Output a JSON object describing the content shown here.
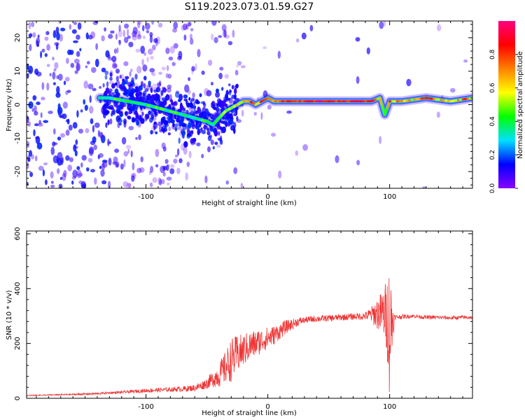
{
  "title": "S119.2023.073.01.59.G27",
  "chart_data": [
    {
      "type": "heatmap",
      "xlabel": "Height of straight line (km)",
      "ylabel": "Frequency (Hz)",
      "xlim": [
        -198,
        168
      ],
      "ylim": [
        -25,
        25
      ],
      "xticks": [
        -100,
        0,
        100
      ],
      "xtick_labels": [
        "-100",
        "0",
        "100"
      ],
      "yticks": [
        -20,
        -10,
        0,
        10,
        20
      ],
      "ytick_labels": [
        "-20",
        "-10",
        "0",
        "10",
        "20"
      ],
      "colorbar": {
        "label": "Normalized spectral amplitude",
        "range": [
          0,
          1
        ],
        "ticks": [
          0.0,
          0.2,
          0.4,
          0.6,
          0.8
        ],
        "tick_labels": [
          "0.0",
          "0.2",
          "0.4",
          "0.6",
          "0.8"
        ],
        "colormap": [
          "#8800ff",
          "#0000ff",
          "#00e0ff",
          "#00ff00",
          "#ffff00",
          "#ff8000",
          "#ff0000",
          "#ff0080"
        ]
      },
      "ridge": {
        "x": [
          -130,
          -115,
          -100,
          -90,
          -80,
          -70,
          -60,
          -50,
          -45,
          -40,
          -35,
          -30,
          -25,
          -20,
          -15,
          -10,
          -5,
          0,
          5,
          10,
          20,
          40,
          60,
          75,
          85,
          92,
          96,
          100,
          110,
          130,
          150,
          168
        ],
        "y": [
          2,
          1,
          0,
          -1,
          -2,
          -3,
          -4,
          -5,
          -6,
          -4,
          -2,
          -1,
          0,
          1,
          1,
          0,
          1,
          2,
          1,
          1,
          1,
          1,
          1,
          1,
          1,
          2,
          -3,
          1,
          1,
          2,
          1,
          2
        ]
      },
      "grid": false
    },
    {
      "type": "line",
      "xlabel": "Height of straight line (km)",
      "ylabel": "SNR (10 * v/v)",
      "xlim": [
        -198,
        168
      ],
      "ylim": [
        0,
        610
      ],
      "xticks": [
        -100,
        0,
        100
      ],
      "xtick_labels": [
        "-100",
        "0",
        "100"
      ],
      "yticks": [
        0,
        200,
        400,
        600
      ],
      "ytick_labels": [
        "0",
        "200",
        "400",
        "600"
      ],
      "color": "#ee3333",
      "x": [
        -198,
        -180,
        -160,
        -140,
        -130,
        -120,
        -110,
        -100,
        -90,
        -80,
        -70,
        -60,
        -55,
        -50,
        -45,
        -40,
        -35,
        -30,
        -25,
        -20,
        -15,
        -10,
        -5,
        0,
        5,
        10,
        15,
        20,
        25,
        30,
        40,
        50,
        60,
        70,
        80,
        85,
        90,
        95,
        98,
        100,
        102,
        104,
        110,
        120,
        130,
        140,
        150,
        160,
        168
      ],
      "y": [
        10,
        12,
        14,
        17,
        20,
        22,
        25,
        28,
        30,
        32,
        34,
        38,
        45,
        55,
        70,
        85,
        110,
        140,
        160,
        175,
        190,
        200,
        210,
        220,
        230,
        245,
        260,
        270,
        280,
        285,
        290,
        292,
        295,
        298,
        300,
        305,
        310,
        310,
        300,
        250,
        280,
        295,
        298,
        300,
        295,
        295,
        293,
        295,
        295
      ],
      "noise": [
        2,
        2,
        3,
        4,
        4,
        5,
        6,
        7,
        8,
        8,
        10,
        12,
        15,
        20,
        30,
        45,
        60,
        80,
        70,
        60,
        55,
        50,
        45,
        40,
        35,
        30,
        25,
        20,
        15,
        12,
        12,
        12,
        12,
        12,
        15,
        30,
        60,
        90,
        150,
        260,
        120,
        10,
        8,
        7,
        7,
        7,
        7,
        7,
        7
      ],
      "grid": false
    }
  ]
}
